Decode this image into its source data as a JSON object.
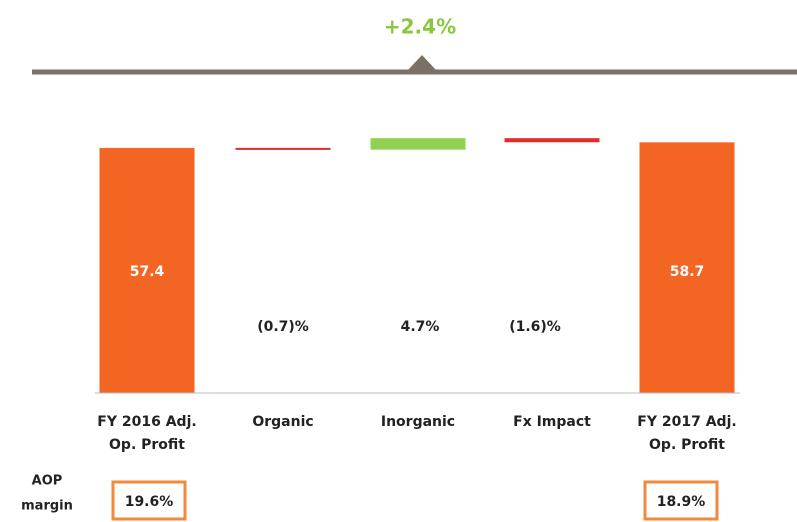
{
  "chart_data": {
    "type": "waterfall",
    "annotation": "+2.4%",
    "categories": [
      [
        "FY 2016 Adj.",
        "Op. Profit"
      ],
      [
        "Organic"
      ],
      [
        "Inorganic"
      ],
      [
        "Fx Impact"
      ],
      [
        "FY 2017 Adj.",
        "Op. Profit"
      ]
    ],
    "kinds": [
      "total",
      "delta",
      "delta",
      "delta",
      "total"
    ],
    "values": [
      57.4,
      -0.7,
      4.7,
      -1.6,
      58.7
    ],
    "value_labels": [
      "57.4",
      "(0.7)%",
      "4.7%",
      "(1.6)%",
      "58.7"
    ],
    "colors": {
      "total": "#f26522",
      "increase": "#92d050",
      "decrease": "#e32b2b"
    },
    "margin_label": [
      "AOP",
      "margin"
    ],
    "margins": [
      19.6,
      null,
      null,
      null,
      18.9
    ],
    "margin_labels": [
      "19.6%",
      null,
      null,
      null,
      "18.9%"
    ]
  }
}
